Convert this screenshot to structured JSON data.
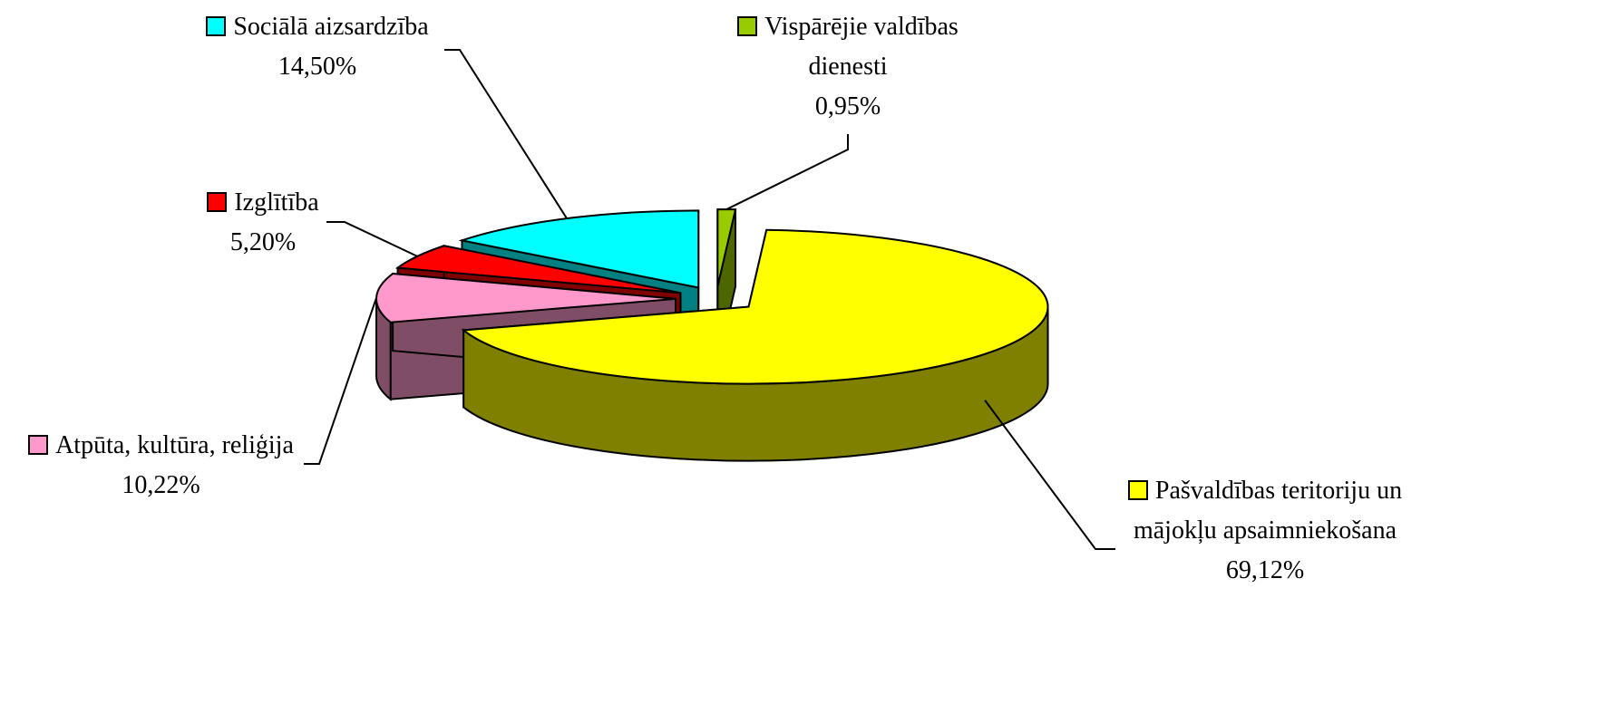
{
  "chart_data": {
    "type": "pie3d",
    "categories": [
      "Vispārējie valdības dienesti",
      "Pašvaldības teritoriju un mājokļu apsaimniekošana",
      "Atpūta, kultūra, reliģija",
      "Izglītība",
      "Sociālā aizsardzība"
    ],
    "values": [
      0.95,
      69.12,
      10.22,
      5.2,
      14.5
    ],
    "value_labels": [
      "0,95%",
      "69,12%",
      "10,22%",
      "5,20%",
      "14,50%"
    ],
    "colors": [
      "#99cc00",
      "#ffff00",
      "#ff99cc",
      "#ff0000",
      "#00ffff"
    ]
  }
}
